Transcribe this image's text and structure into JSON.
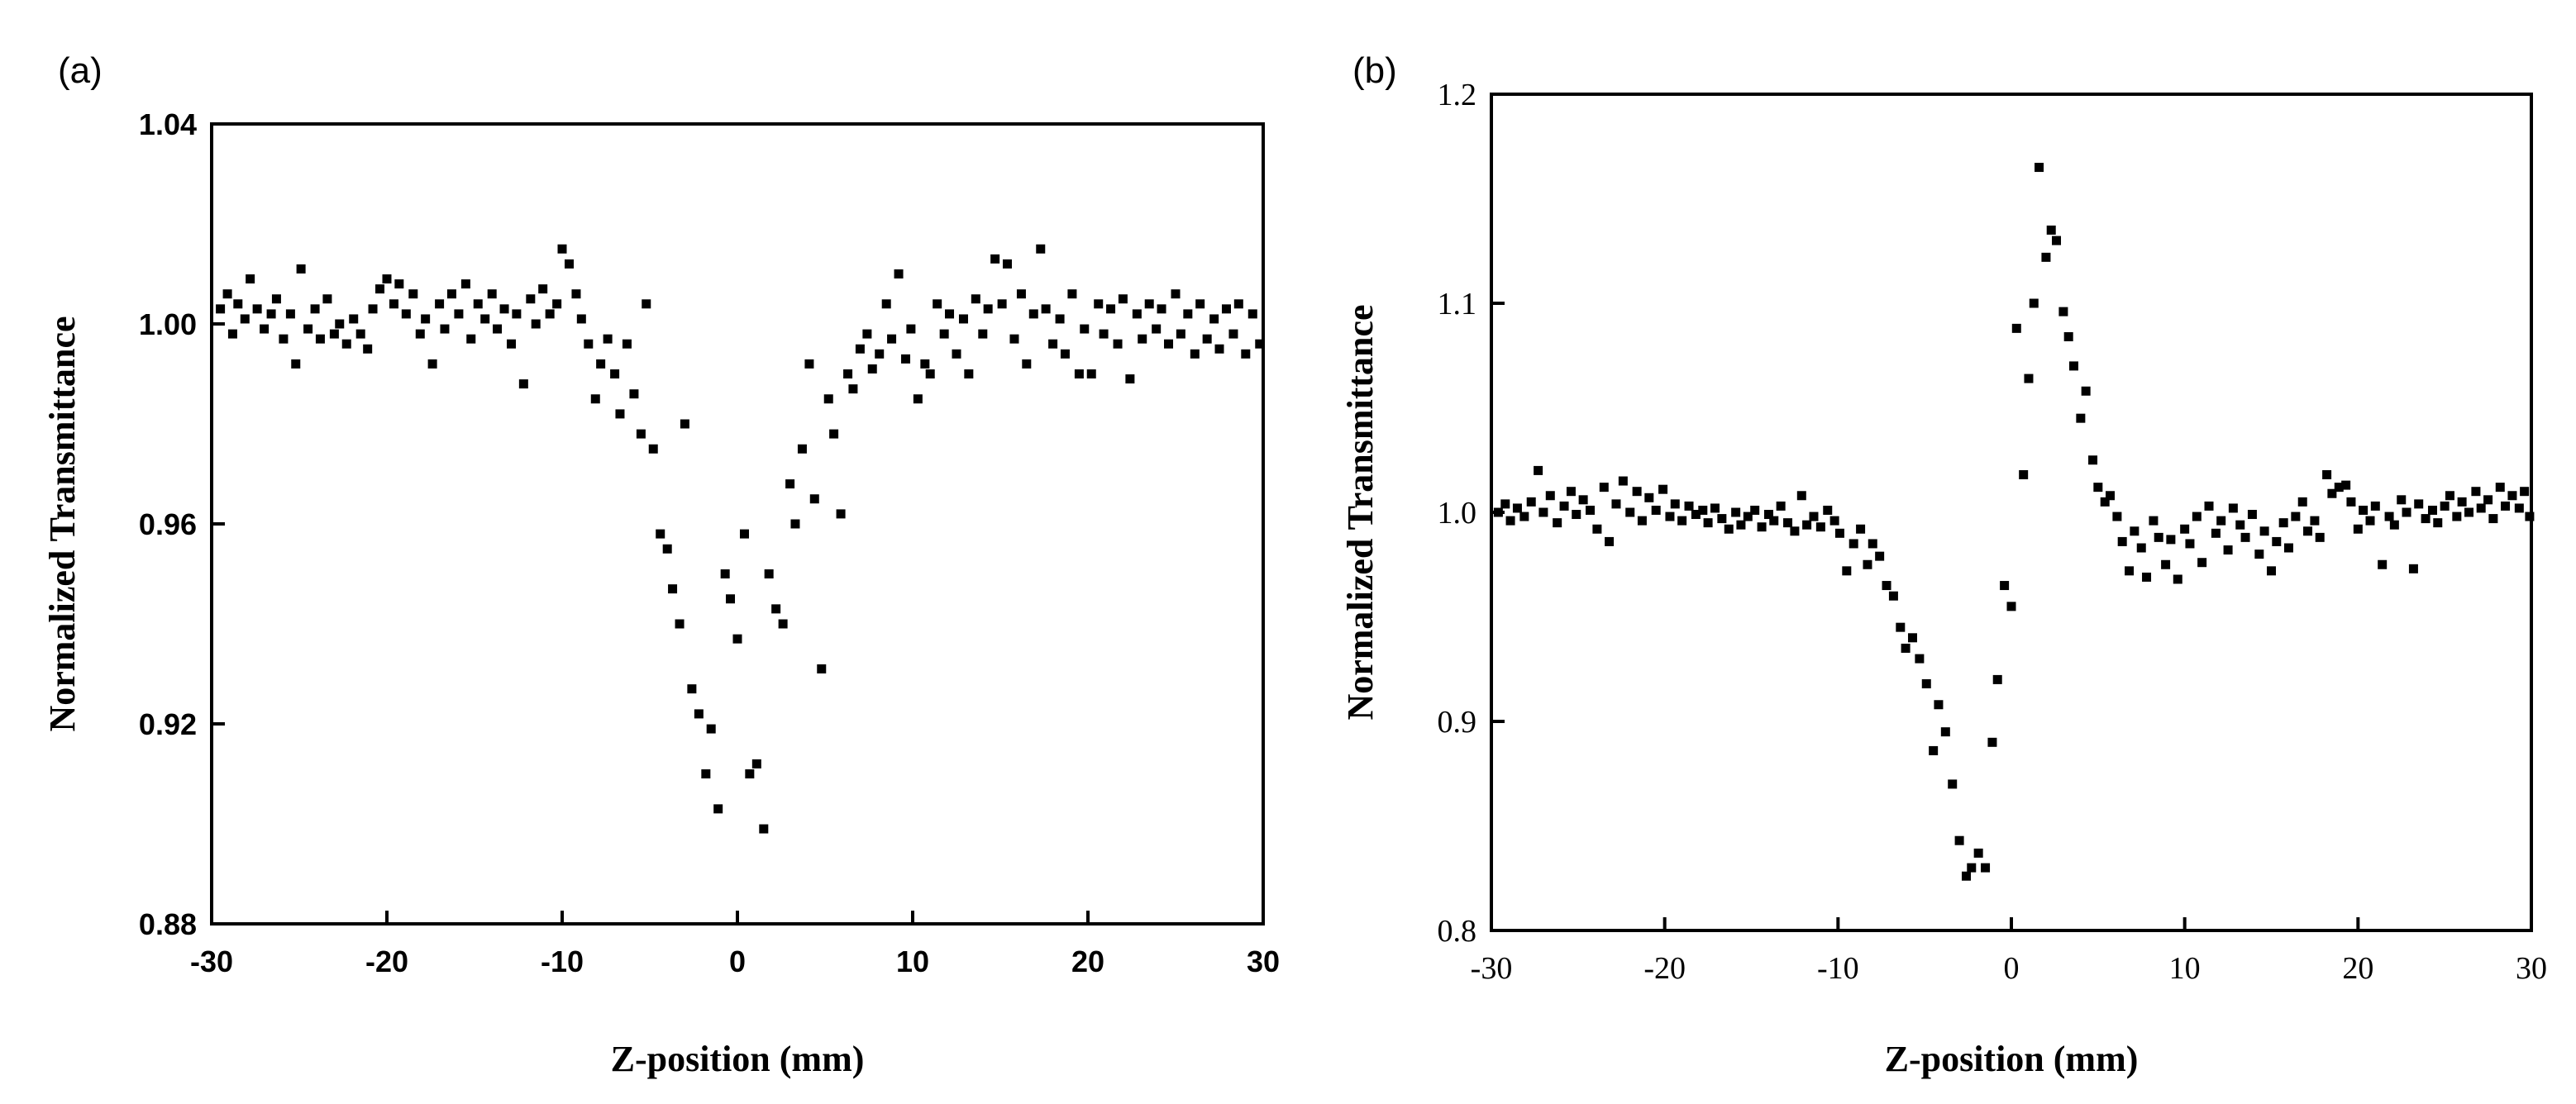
{
  "panels": [
    {
      "label": "(a)"
    },
    {
      "label": "(b)"
    }
  ],
  "colors": {
    "points": "#000000",
    "axes": "#000000",
    "background": "#ffffff"
  },
  "chart_data": [
    {
      "type": "scatter",
      "panel": "(a)",
      "xlabel": "Z-position (mm)",
      "ylabel": "Normalized Transmittance",
      "xlim": [
        -30,
        30
      ],
      "ylim": [
        0.88,
        1.04
      ],
      "xticks": [
        -30,
        -20,
        -10,
        0,
        10,
        20,
        30
      ],
      "yticks": [
        0.88,
        0.92,
        0.96,
        1.0,
        1.04
      ],
      "ytick_labels": [
        "0.88",
        "0.92",
        "0.96",
        "1.00",
        "1.04"
      ],
      "grid": false,
      "points": [
        [
          -29.5,
          1.003
        ],
        [
          -29.1,
          1.006
        ],
        [
          -28.8,
          0.998
        ],
        [
          -28.5,
          1.004
        ],
        [
          -28.1,
          1.001
        ],
        [
          -27.8,
          1.009
        ],
        [
          -27.4,
          1.003
        ],
        [
          -27.0,
          0.999
        ],
        [
          -26.6,
          1.002
        ],
        [
          -26.3,
          1.005
        ],
        [
          -25.9,
          0.997
        ],
        [
          -25.5,
          1.002
        ],
        [
          -25.2,
          0.992
        ],
        [
          -24.9,
          1.011
        ],
        [
          -24.5,
          0.999
        ],
        [
          -24.1,
          1.003
        ],
        [
          -23.8,
          0.997
        ],
        [
          -23.4,
          1.005
        ],
        [
          -23.0,
          0.998
        ],
        [
          -22.7,
          1.0
        ],
        [
          -22.3,
          0.996
        ],
        [
          -21.9,
          1.001
        ],
        [
          -21.5,
          0.998
        ],
        [
          -21.1,
          0.995
        ],
        [
          -20.8,
          1.003
        ],
        [
          -20.4,
          1.007
        ],
        [
          -20.0,
          1.009
        ],
        [
          -19.6,
          1.004
        ],
        [
          -19.3,
          1.008
        ],
        [
          -18.9,
          1.002
        ],
        [
          -18.5,
          1.006
        ],
        [
          -18.1,
          0.998
        ],
        [
          -17.8,
          1.001
        ],
        [
          -17.4,
          0.992
        ],
        [
          -17.0,
          1.004
        ],
        [
          -16.7,
          0.999
        ],
        [
          -16.3,
          1.006
        ],
        [
          -15.9,
          1.002
        ],
        [
          -15.5,
          1.008
        ],
        [
          -15.2,
          0.997
        ],
        [
          -14.8,
          1.004
        ],
        [
          -14.4,
          1.001
        ],
        [
          -14.0,
          1.006
        ],
        [
          -13.7,
          0.999
        ],
        [
          -13.3,
          1.003
        ],
        [
          -12.9,
          0.996
        ],
        [
          -12.6,
          1.002
        ],
        [
          -12.2,
          0.988
        ],
        [
          -11.8,
          1.005
        ],
        [
          -11.5,
          1.0
        ],
        [
          -11.1,
          1.007
        ],
        [
          -10.7,
          1.002
        ],
        [
          -10.3,
          1.004
        ],
        [
          -10.0,
          1.015
        ],
        [
          -9.6,
          1.012
        ],
        [
          -9.2,
          1.006
        ],
        [
          -8.9,
          1.001
        ],
        [
          -8.5,
          0.996
        ],
        [
          -8.1,
          0.985
        ],
        [
          -7.8,
          0.992
        ],
        [
          -7.4,
          0.997
        ],
        [
          -7.0,
          0.99
        ],
        [
          -6.7,
          0.982
        ],
        [
          -6.3,
          0.996
        ],
        [
          -5.9,
          0.986
        ],
        [
          -5.5,
          0.978
        ],
        [
          -5.2,
          1.004
        ],
        [
          -4.8,
          0.975
        ],
        [
          -4.4,
          0.958
        ],
        [
          -4.0,
          0.955
        ],
        [
          -3.7,
          0.947
        ],
        [
          -3.3,
          0.94
        ],
        [
          -3.0,
          0.98
        ],
        [
          -2.6,
          0.927
        ],
        [
          -2.2,
          0.922
        ],
        [
          -1.8,
          0.91
        ],
        [
          -1.5,
          0.919
        ],
        [
          -1.1,
          0.903
        ],
        [
          -0.7,
          0.95
        ],
        [
          -0.4,
          0.945
        ],
        [
          0.0,
          0.937
        ],
        [
          0.4,
          0.958
        ],
        [
          0.7,
          0.91
        ],
        [
          1.1,
          0.912
        ],
        [
          1.5,
          0.899
        ],
        [
          1.8,
          0.95
        ],
        [
          2.2,
          0.943
        ],
        [
          2.6,
          0.94
        ],
        [
          3.0,
          0.968
        ],
        [
          3.3,
          0.96
        ],
        [
          3.7,
          0.975
        ],
        [
          4.1,
          0.992
        ],
        [
          4.4,
          0.965
        ],
        [
          4.8,
          0.931
        ],
        [
          5.2,
          0.985
        ],
        [
          5.5,
          0.978
        ],
        [
          5.9,
          0.962
        ],
        [
          6.3,
          0.99
        ],
        [
          6.6,
          0.987
        ],
        [
          7.0,
          0.995
        ],
        [
          7.4,
          0.998
        ],
        [
          7.7,
          0.991
        ],
        [
          8.1,
          0.994
        ],
        [
          8.5,
          1.004
        ],
        [
          8.8,
          0.997
        ],
        [
          9.2,
          1.01
        ],
        [
          9.6,
          0.993
        ],
        [
          9.9,
          0.999
        ],
        [
          10.3,
          0.985
        ],
        [
          10.7,
          0.992
        ],
        [
          11.0,
          0.99
        ],
        [
          11.4,
          1.004
        ],
        [
          11.8,
          0.998
        ],
        [
          12.1,
          1.002
        ],
        [
          12.5,
          0.994
        ],
        [
          12.9,
          1.001
        ],
        [
          13.2,
          0.99
        ],
        [
          13.6,
          1.005
        ],
        [
          14.0,
          0.998
        ],
        [
          14.3,
          1.003
        ],
        [
          14.7,
          1.013
        ],
        [
          15.1,
          1.004
        ],
        [
          15.4,
          1.012
        ],
        [
          15.8,
          0.997
        ],
        [
          16.2,
          1.006
        ],
        [
          16.5,
          0.992
        ],
        [
          16.9,
          1.002
        ],
        [
          17.3,
          1.015
        ],
        [
          17.6,
          1.003
        ],
        [
          18.0,
          0.996
        ],
        [
          18.4,
          1.001
        ],
        [
          18.7,
          0.994
        ],
        [
          19.1,
          1.006
        ],
        [
          19.5,
          0.99
        ],
        [
          19.8,
          0.999
        ],
        [
          20.2,
          0.99
        ],
        [
          20.6,
          1.004
        ],
        [
          20.9,
          0.998
        ],
        [
          21.3,
          1.003
        ],
        [
          21.7,
          0.996
        ],
        [
          22.0,
          1.005
        ],
        [
          22.4,
          0.989
        ],
        [
          22.8,
          1.002
        ],
        [
          23.1,
          0.997
        ],
        [
          23.5,
          1.004
        ],
        [
          23.9,
          0.999
        ],
        [
          24.2,
          1.003
        ],
        [
          24.6,
          0.996
        ],
        [
          25.0,
          1.006
        ],
        [
          25.3,
          0.998
        ],
        [
          25.7,
          1.002
        ],
        [
          26.1,
          0.994
        ],
        [
          26.4,
          1.004
        ],
        [
          26.8,
          0.997
        ],
        [
          27.2,
          1.001
        ],
        [
          27.5,
          0.995
        ],
        [
          27.9,
          1.003
        ],
        [
          28.3,
          0.998
        ],
        [
          28.6,
          1.004
        ],
        [
          29.0,
          0.994
        ],
        [
          29.4,
          1.002
        ],
        [
          29.8,
          0.996
        ]
      ]
    },
    {
      "type": "scatter",
      "panel": "(b)",
      "xlabel": "Z-position (mm)",
      "ylabel": "Normalized Transmittance",
      "xlim": [
        -30,
        30
      ],
      "ylim": [
        0.8,
        1.2
      ],
      "xticks": [
        -30,
        -20,
        -10,
        0,
        10,
        20,
        30
      ],
      "yticks": [
        0.8,
        0.9,
        1.0,
        1.1,
        1.2
      ],
      "ytick_labels": [
        "0.8",
        "0.9",
        "1.0",
        "1.1",
        "1.2"
      ],
      "grid": false,
      "points": [
        [
          -29.6,
          1.0
        ],
        [
          -29.2,
          1.004
        ],
        [
          -28.9,
          0.996
        ],
        [
          -28.5,
          1.002
        ],
        [
          -28.1,
          0.998
        ],
        [
          -27.7,
          1.005
        ],
        [
          -27.3,
          1.02
        ],
        [
          -27.0,
          1.0
        ],
        [
          -26.6,
          1.008
        ],
        [
          -26.2,
          0.995
        ],
        [
          -25.8,
          1.003
        ],
        [
          -25.4,
          1.01
        ],
        [
          -25.1,
          0.999
        ],
        [
          -24.7,
          1.006
        ],
        [
          -24.3,
          1.001
        ],
        [
          -23.9,
          0.992
        ],
        [
          -23.5,
          1.012
        ],
        [
          -23.2,
          0.986
        ],
        [
          -22.8,
          1.004
        ],
        [
          -22.4,
          1.015
        ],
        [
          -22.0,
          1.0
        ],
        [
          -21.6,
          1.01
        ],
        [
          -21.3,
          0.996
        ],
        [
          -20.9,
          1.007
        ],
        [
          -20.5,
          1.001
        ],
        [
          -20.1,
          1.011
        ],
        [
          -19.7,
          0.998
        ],
        [
          -19.4,
          1.004
        ],
        [
          -19.0,
          0.996
        ],
        [
          -18.6,
          1.003
        ],
        [
          -18.2,
          0.999
        ],
        [
          -17.8,
          1.001
        ],
        [
          -17.5,
          0.995
        ],
        [
          -17.1,
          1.002
        ],
        [
          -16.7,
          0.997
        ],
        [
          -16.3,
          0.992
        ],
        [
          -15.9,
          1.0
        ],
        [
          -15.6,
          0.994
        ],
        [
          -15.2,
          0.998
        ],
        [
          -14.8,
          1.001
        ],
        [
          -14.4,
          0.993
        ],
        [
          -14.0,
          0.999
        ],
        [
          -13.7,
          0.996
        ],
        [
          -13.3,
          1.003
        ],
        [
          -12.9,
          0.995
        ],
        [
          -12.5,
          0.991
        ],
        [
          -12.1,
          1.008
        ],
        [
          -11.8,
          0.994
        ],
        [
          -11.4,
          0.998
        ],
        [
          -11.0,
          0.993
        ],
        [
          -10.6,
          1.001
        ],
        [
          -10.2,
          0.996
        ],
        [
          -9.9,
          0.99
        ],
        [
          -9.5,
          0.972
        ],
        [
          -9.1,
          0.985
        ],
        [
          -8.7,
          0.992
        ],
        [
          -8.3,
          0.975
        ],
        [
          -8.0,
          0.985
        ],
        [
          -7.6,
          0.979
        ],
        [
          -7.2,
          0.965
        ],
        [
          -6.8,
          0.96
        ],
        [
          -6.4,
          0.945
        ],
        [
          -6.1,
          0.935
        ],
        [
          -5.7,
          0.94
        ],
        [
          -5.3,
          0.93
        ],
        [
          -4.9,
          0.918
        ],
        [
          -4.5,
          0.886
        ],
        [
          -4.2,
          0.908
        ],
        [
          -3.8,
          0.895
        ],
        [
          -3.4,
          0.87
        ],
        [
          -3.0,
          0.843
        ],
        [
          -2.6,
          0.826
        ],
        [
          -2.3,
          0.83
        ],
        [
          -1.9,
          0.837
        ],
        [
          -1.5,
          0.83
        ],
        [
          -1.1,
          0.89
        ],
        [
          -0.8,
          0.92
        ],
        [
          -0.4,
          0.965
        ],
        [
          0.0,
          0.955
        ],
        [
          0.3,
          1.088
        ],
        [
          0.7,
          1.018
        ],
        [
          1.0,
          1.064
        ],
        [
          1.3,
          1.1
        ],
        [
          1.6,
          1.165
        ],
        [
          2.0,
          1.122
        ],
        [
          2.3,
          1.135
        ],
        [
          2.6,
          1.13
        ],
        [
          3.0,
          1.096
        ],
        [
          3.3,
          1.084
        ],
        [
          3.6,
          1.07
        ],
        [
          4.0,
          1.045
        ],
        [
          4.3,
          1.058
        ],
        [
          4.7,
          1.025
        ],
        [
          5.0,
          1.012
        ],
        [
          5.4,
          1.005
        ],
        [
          5.7,
          1.008
        ],
        [
          6.1,
          0.998
        ],
        [
          6.4,
          0.986
        ],
        [
          6.8,
          0.972
        ],
        [
          7.1,
          0.991
        ],
        [
          7.5,
          0.983
        ],
        [
          7.8,
          0.969
        ],
        [
          8.2,
          0.996
        ],
        [
          8.5,
          0.988
        ],
        [
          8.9,
          0.975
        ],
        [
          9.2,
          0.987
        ],
        [
          9.6,
          0.968
        ],
        [
          10.0,
          0.992
        ],
        [
          10.3,
          0.985
        ],
        [
          10.7,
          0.998
        ],
        [
          11.0,
          0.976
        ],
        [
          11.4,
          1.003
        ],
        [
          11.8,
          0.99
        ],
        [
          12.1,
          0.996
        ],
        [
          12.5,
          0.982
        ],
        [
          12.8,
          1.002
        ],
        [
          13.2,
          0.994
        ],
        [
          13.5,
          0.988
        ],
        [
          13.9,
          0.999
        ],
        [
          14.3,
          0.98
        ],
        [
          14.6,
          0.991
        ],
        [
          15.0,
          0.972
        ],
        [
          15.3,
          0.986
        ],
        [
          15.7,
          0.995
        ],
        [
          16.0,
          0.983
        ],
        [
          16.4,
          0.998
        ],
        [
          16.8,
          1.005
        ],
        [
          17.1,
          0.991
        ],
        [
          17.5,
          0.996
        ],
        [
          17.8,
          0.988
        ],
        [
          18.2,
          1.018
        ],
        [
          18.5,
          1.009
        ],
        [
          18.9,
          1.012
        ],
        [
          19.3,
          1.013
        ],
        [
          19.6,
          1.005
        ],
        [
          20.0,
          0.992
        ],
        [
          20.3,
          1.001
        ],
        [
          20.7,
          0.996
        ],
        [
          21.0,
          1.003
        ],
        [
          21.4,
          0.975
        ],
        [
          21.8,
          0.998
        ],
        [
          22.1,
          0.994
        ],
        [
          22.5,
          1.006
        ],
        [
          22.8,
          1.0
        ],
        [
          23.2,
          0.973
        ],
        [
          23.5,
          1.004
        ],
        [
          23.9,
          0.997
        ],
        [
          24.3,
          1.001
        ],
        [
          24.6,
          0.995
        ],
        [
          25.0,
          1.003
        ],
        [
          25.3,
          1.008
        ],
        [
          25.7,
          0.998
        ],
        [
          26.0,
          1.005
        ],
        [
          26.4,
          1.0
        ],
        [
          26.8,
          1.01
        ],
        [
          27.1,
          1.002
        ],
        [
          27.5,
          1.006
        ],
        [
          27.8,
          0.997
        ],
        [
          28.2,
          1.012
        ],
        [
          28.5,
          1.003
        ],
        [
          28.9,
          1.008
        ],
        [
          29.3,
          1.002
        ],
        [
          29.6,
          1.01
        ],
        [
          29.9,
          0.998
        ]
      ]
    }
  ]
}
